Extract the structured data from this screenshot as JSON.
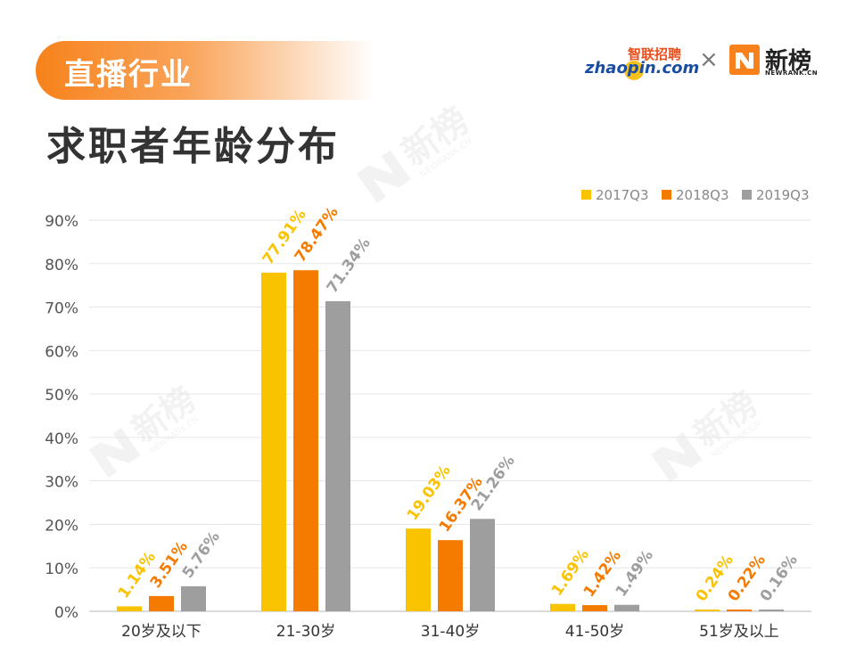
{
  "header": {
    "category": "直播行业",
    "title": "求职者年龄分布",
    "logo_zhaopin_cn": "智联招聘",
    "logo_zhaopin_en": "zhaopin.com",
    "times_symbol": "×",
    "logo_newrank_cn": "新榜",
    "logo_newrank_en": "NEWRANK.CN",
    "watermark_cn": "新榜",
    "watermark_en": "NEWRANK.CN"
  },
  "colors": {
    "brand_orange": "#f7821b",
    "series": [
      "#f9c300",
      "#f57a00",
      "#9e9e9e"
    ],
    "grid": "#e6e6e6",
    "axis_text": "#555555"
  },
  "chart_data": {
    "type": "bar",
    "title": "求职者年龄分布",
    "xlabel": "",
    "ylabel": "",
    "ylim": [
      0,
      90
    ],
    "yticks": [
      "0%",
      "10%",
      "20%",
      "30%",
      "40%",
      "50%",
      "60%",
      "70%",
      "80%",
      "90%"
    ],
    "categories": [
      "20岁及以下",
      "21-30岁",
      "31-40岁",
      "41-50岁",
      "51岁及以上"
    ],
    "series": [
      {
        "name": "2017Q3",
        "values": [
          1.14,
          77.91,
          19.03,
          1.69,
          0.24
        ],
        "labels": [
          "1.14%",
          "77.91%",
          "19.03%",
          "1.69%",
          "0.24%"
        ]
      },
      {
        "name": "2018Q3",
        "values": [
          3.51,
          78.47,
          16.37,
          1.42,
          0.22
        ],
        "labels": [
          "3.51%",
          "78.47%",
          "16.37%",
          "1.42%",
          "0.22%"
        ]
      },
      {
        "name": "2019Q3",
        "values": [
          5.76,
          71.34,
          21.26,
          1.49,
          0.16
        ],
        "labels": [
          "5.76%",
          "71.34%",
          "21.26%",
          "1.49%",
          "0.16%"
        ]
      }
    ],
    "grid": true,
    "legend": "top-right"
  }
}
